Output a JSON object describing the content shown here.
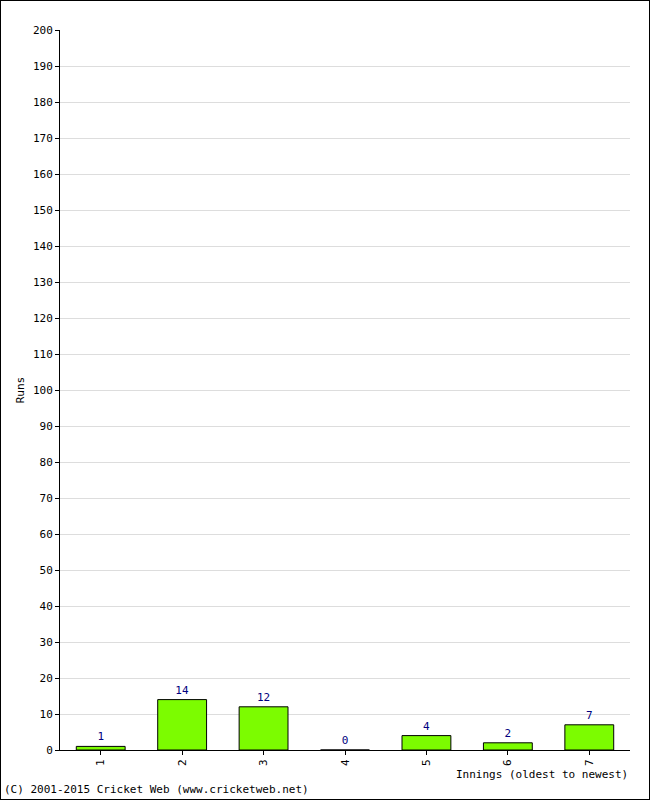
{
  "chart_data": {
    "type": "bar",
    "y_label": "Runs",
    "x_label": "Innings (oldest to newest)",
    "annotations": [
      "(C) 2001-2015 Cricket Web (www.cricketweb.net)"
    ],
    "categories": [
      "1",
      "2",
      "3",
      "4",
      "5",
      "6",
      "7"
    ],
    "values": [
      1,
      14,
      12,
      0,
      4,
      2,
      7
    ],
    "color": "#7cfc00",
    "ylim": [
      0,
      200
    ],
    "yticks": [
      0,
      10,
      20,
      30,
      40,
      50,
      60,
      70,
      80,
      90,
      100,
      110,
      120,
      130,
      140,
      150,
      160,
      170,
      180,
      190,
      200
    ],
    "grid": true,
    "data_labels": true
  }
}
